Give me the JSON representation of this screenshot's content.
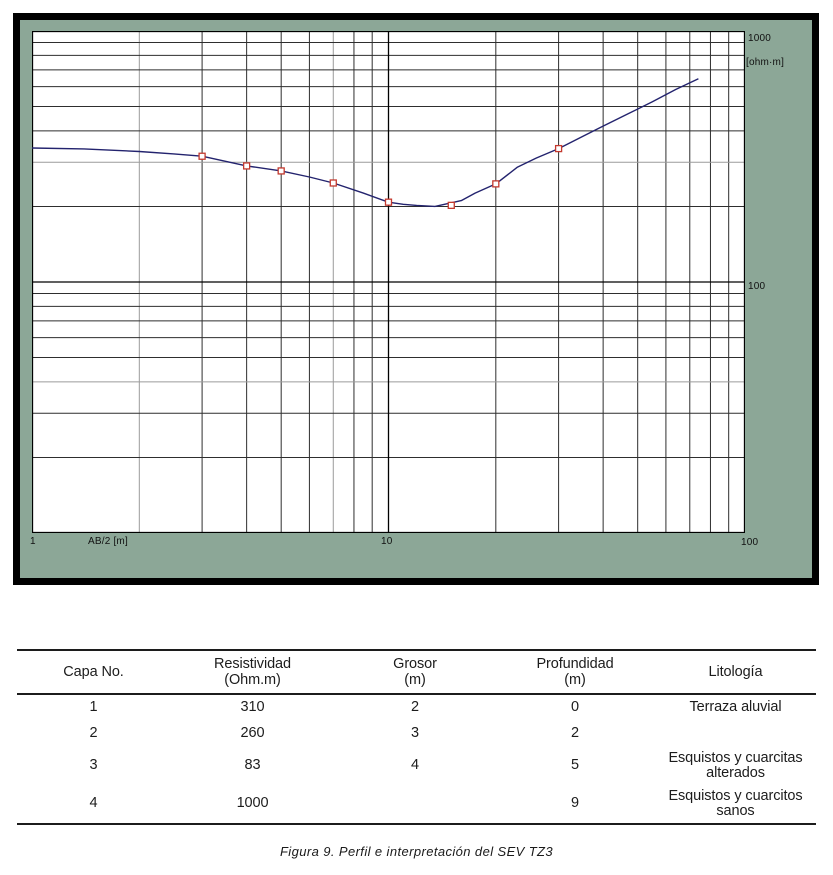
{
  "figure": {
    "caption": "Figura 9. Perfil e interpretación del SEV TZ3"
  },
  "chart_data": {
    "type": "line",
    "x_scale": "log",
    "y_scale": "log",
    "xlim": [
      1,
      100
    ],
    "ylim": [
      10,
      1000
    ],
    "xlabel": "AB/2 [m]",
    "ylabel": "[ohm·m]",
    "x_tick_labels": [
      "1",
      "10",
      "100"
    ],
    "y_tick_labels": [
      "1000",
      "100"
    ],
    "grid": true,
    "legend": false,
    "series": [
      {
        "name": "curva-modelo",
        "type": "line",
        "color": "#23236e",
        "x": [
          1,
          1.4,
          2,
          2.5,
          3,
          4,
          5,
          6,
          7,
          8.5,
          10,
          11,
          12,
          13.5,
          16,
          17.5,
          20,
          23,
          26,
          30,
          35,
          40,
          47,
          55,
          64,
          74
        ],
        "y": [
          342,
          339,
          331,
          324,
          317,
          290,
          277,
          262,
          248,
          226,
          208,
          204,
          202,
          200,
          211,
          226,
          246,
          287,
          312,
          340,
          380,
          418,
          468,
          523,
          585,
          645
        ]
      },
      {
        "name": "puntos-medidos",
        "type": "scatter",
        "marker": "open-square",
        "color": "#c4392e",
        "x": [
          3,
          4,
          5,
          7,
          10,
          15,
          20,
          30
        ],
        "y": [
          317,
          290,
          277,
          248,
          208,
          202,
          246,
          340
        ]
      }
    ]
  },
  "table": {
    "headers": [
      {
        "line1": "Capa No.",
        "line2": ""
      },
      {
        "line1": "Resistividad",
        "line2": "(Ohm.m)"
      },
      {
        "line1": "Grosor",
        "line2": "(m)"
      },
      {
        "line1": "Profundidad",
        "line2": "(m)"
      },
      {
        "line1": "Litología",
        "line2": ""
      }
    ],
    "rows": [
      [
        "1",
        "310",
        "2",
        "0",
        "Terraza aluvial"
      ],
      [
        "2",
        "260",
        "3",
        "2",
        ""
      ],
      [
        "3",
        "83",
        "4",
        "5",
        "Esquistos y cuarcitas alterados"
      ],
      [
        "4",
        "1000",
        "",
        "9",
        "Esquistos y cuarcitos sanos"
      ]
    ]
  },
  "colors": {
    "frame_green": "#8ca797",
    "plot_background": "#ffffff",
    "grid_minor": "#2e2e2e",
    "grid_major": "#000000",
    "grid_gray": "#9b9b9b",
    "curve": "#23236e",
    "marker": "#c4392e",
    "text": "#1c1c1c"
  }
}
